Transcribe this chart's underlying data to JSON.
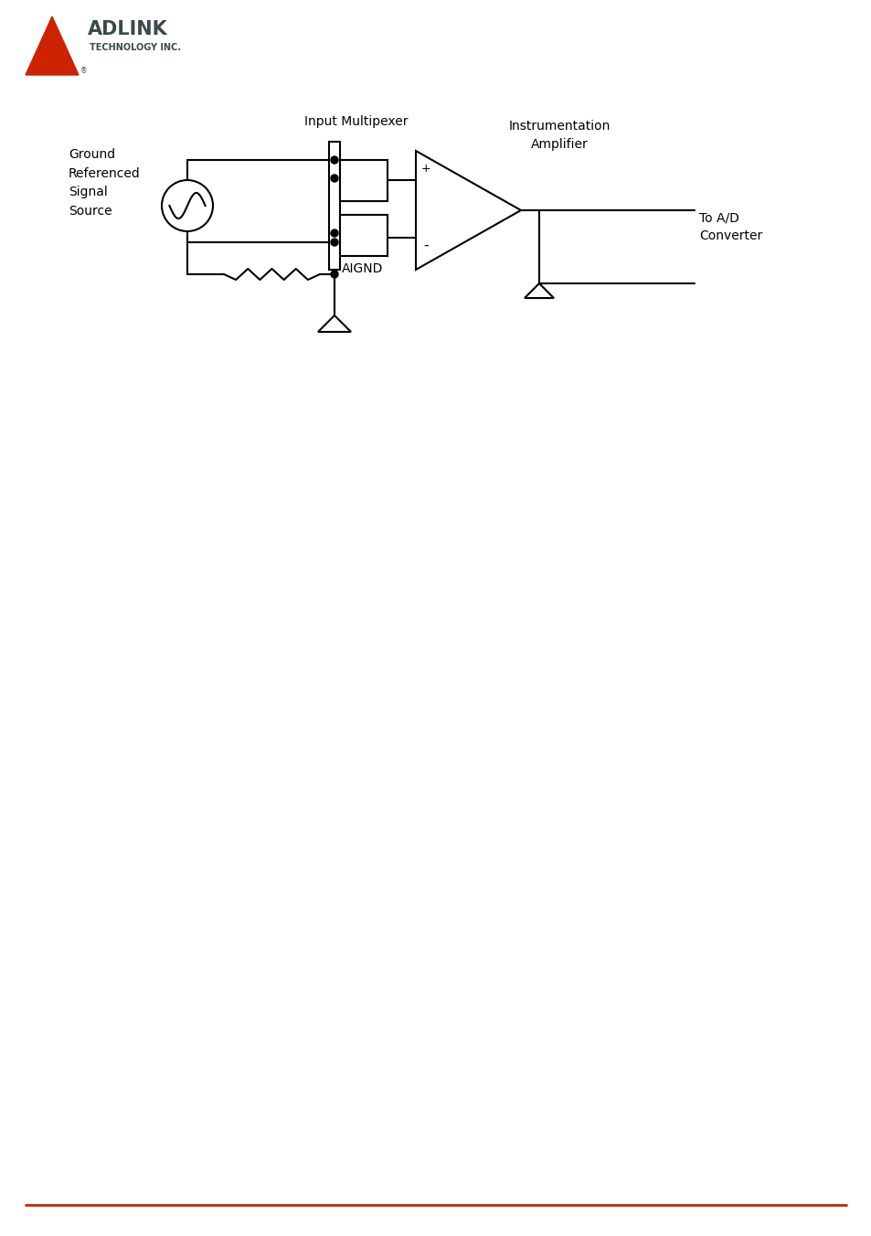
{
  "title": "",
  "bg_color": "#ffffff",
  "line_color": "#000000",
  "logo_triangle_color": "#cc2200",
  "logo_text_color": "#3a4a4a",
  "red_line_color": "#cc2200",
  "labels": {
    "ground_ref": "Ground\nReferenced\nSignal\nSource",
    "input_mux": "Input Multipexer",
    "inst_amp": "Instrumentation\nAmplifier",
    "aignd": "AIGND",
    "to_ad": "To A/D\nConverter"
  },
  "figsize": [
    9.54,
    13.52
  ],
  "dpi": 100
}
